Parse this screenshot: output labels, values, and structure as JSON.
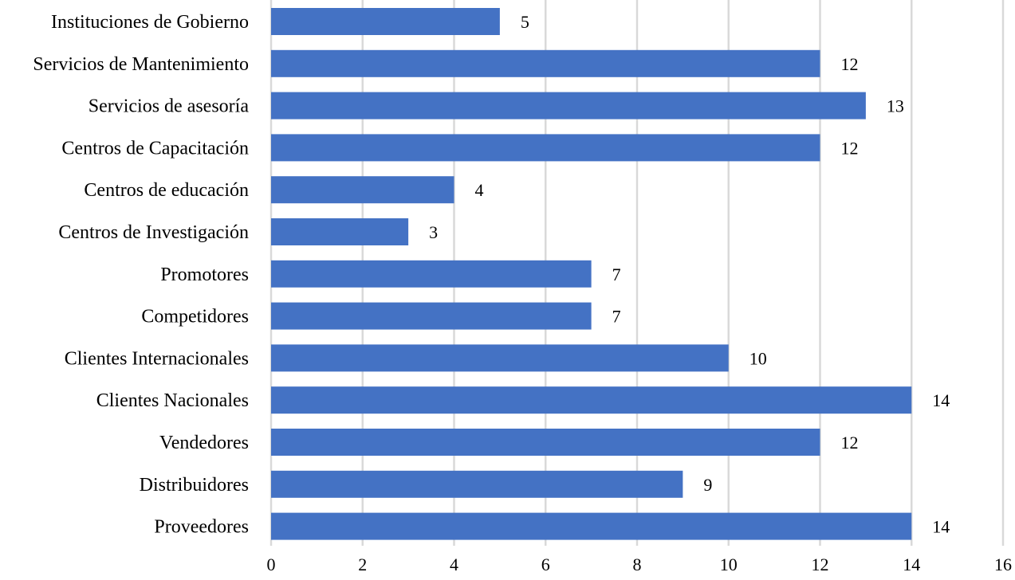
{
  "chart_data": {
    "type": "bar",
    "orientation": "horizontal",
    "title": "",
    "xlabel": "",
    "ylabel": "",
    "categories": [
      "Instituciones de Gobierno",
      "Servicios de Mantenimiento",
      "Servicios de asesoría",
      "Centros de Capacitación",
      "Centros de educación",
      "Centros de Investigación",
      "Promotores",
      "Competidores",
      "Clientes Internacionales",
      "Clientes Nacionales",
      "Vendedores",
      "Distribuidores",
      "Proveedores"
    ],
    "values": [
      5,
      12,
      13,
      12,
      4,
      3,
      7,
      7,
      10,
      14,
      12,
      9,
      14
    ],
    "xlim": [
      0,
      16
    ],
    "xticks": [
      0,
      2,
      4,
      6,
      8,
      10,
      12,
      14,
      16
    ],
    "grid": true,
    "legend": "none",
    "data_labels": true,
    "colors": {
      "bar": "#4472C4",
      "grid": "#D9D9D9",
      "text": "#000000"
    }
  }
}
